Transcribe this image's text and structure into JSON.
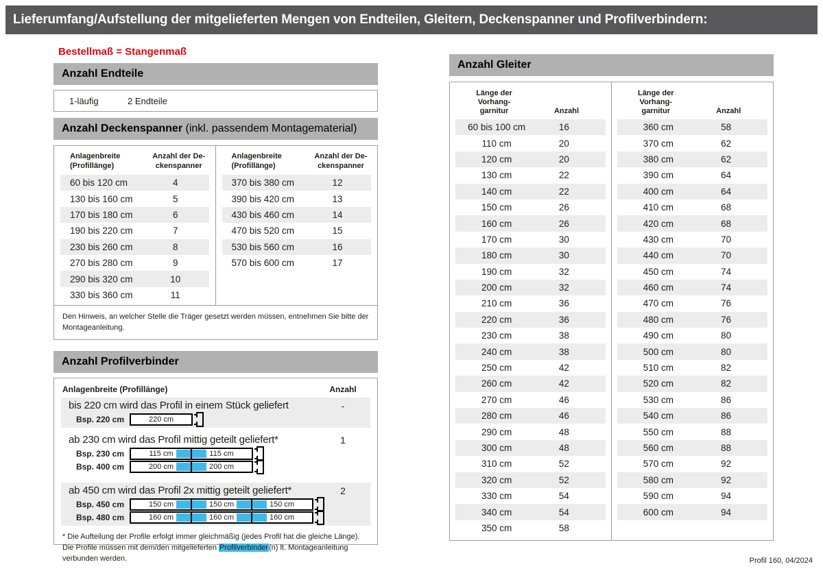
{
  "header": {
    "title": "Lieferumfang/Aufstellung der mitgelieferten Mengen von Endteilen, Gleitern, Deckenspanner und Profilverbindern:"
  },
  "subtitle": "Bestellmaß = Stangenmaß",
  "endteile": {
    "title": "Anzahl Endteile",
    "row": {
      "name": "1-läufig",
      "value": "2 Endteile"
    }
  },
  "deckenspanner": {
    "title_bold": "Anzahl Deckenspanner",
    "title_note": " (inkl. passendem Montagematerial)",
    "header": {
      "col1_lines": [
        "Anlagenbreite",
        "(Profillänge)"
      ],
      "col2_lines": [
        "Anzahl der De-",
        "ckenspanner"
      ]
    },
    "left_rows": [
      [
        "60 bis 120 cm",
        4
      ],
      [
        "130 bis 160 cm",
        5
      ],
      [
        "170 bis 180 cm",
        6
      ],
      [
        "190 bis 220 cm",
        7
      ],
      [
        "230 bis 260 cm",
        8
      ],
      [
        "270 bis 280 cm",
        9
      ],
      [
        "290 bis 320 cm",
        10
      ],
      [
        "330 bis 360 cm",
        11
      ]
    ],
    "right_rows": [
      [
        "370 bis 380 cm",
        12
      ],
      [
        "390 bis 420 cm",
        13
      ],
      [
        "430 bis 460 cm",
        14
      ],
      [
        "470 bis 520 cm",
        15
      ],
      [
        "530 bis 560 cm",
        16
      ],
      [
        "570 bis 600 cm",
        17
      ]
    ],
    "note": "Den Hinweis, an welcher Stelle die Träger gesetzt werden müssen, entnehmen Sie bitte der Montageanleitung."
  },
  "profilverbinder": {
    "title": "Anzahl Profilverbinder",
    "header": {
      "col1": "Anlagenbreite (Profillänge)",
      "col2": "Anzahl"
    },
    "groups": [
      {
        "heading": "bis 220 cm wird das Profil in einem Stück geliefert",
        "anzahl": "-",
        "shaded": true,
        "examples": [
          {
            "label": "Bsp. 220 cm",
            "segments": [
              "220 cm"
            ]
          }
        ]
      },
      {
        "heading": "ab 230 cm wird das Profil mittig geteilt geliefert*",
        "anzahl": "1",
        "shaded": false,
        "examples": [
          {
            "label": "Bsp. 230 cm",
            "segments": [
              "115 cm",
              "115 cm"
            ]
          },
          {
            "label": "Bsp. 400 cm",
            "segments": [
              "200 cm",
              "200 cm"
            ]
          }
        ]
      },
      {
        "heading": "ab 450 cm wird das Profil 2x mittig geteilt geliefert*",
        "anzahl": "2",
        "shaded": true,
        "examples": [
          {
            "label": "Bsp. 450 cm",
            "segments": [
              "150 cm",
              "150 cm",
              "150 cm"
            ]
          },
          {
            "label": "Bsp. 480 cm",
            "segments": [
              "160 cm",
              "160 cm",
              "160 cm"
            ]
          }
        ]
      }
    ],
    "footnote": {
      "before": "* Die Aufteilung der Profile erfolgt immer gleichmäßig (jedes Profil hat die gleiche Länge). Die Profile müssen mit dem/den mitgelieferten ",
      "highlight": "Profilverbinder",
      "after": "(n) lt. Montageanleitung verbunden werden."
    }
  },
  "gleiter": {
    "title": "Anzahl Gleiter",
    "header": {
      "col1_lines": [
        "Länge der",
        "Vorhang-",
        "garnitur"
      ],
      "col2": "Anzahl"
    },
    "left_rows": [
      [
        "60 bis 100 cm",
        16
      ],
      [
        "110 cm",
        20
      ],
      [
        "120 cm",
        20
      ],
      [
        "130 cm",
        22
      ],
      [
        "140 cm",
        22
      ],
      [
        "150 cm",
        26
      ],
      [
        "160 cm",
        26
      ],
      [
        "170 cm",
        30
      ],
      [
        "180 cm",
        30
      ],
      [
        "190 cm",
        32
      ],
      [
        "200 cm",
        32
      ],
      [
        "210 cm",
        36
      ],
      [
        "220 cm",
        36
      ],
      [
        "230 cm",
        38
      ],
      [
        "240 cm",
        38
      ],
      [
        "250 cm",
        42
      ],
      [
        "260 cm",
        42
      ],
      [
        "270 cm",
        46
      ],
      [
        "280 cm",
        46
      ],
      [
        "290 cm",
        48
      ],
      [
        "300 cm",
        48
      ],
      [
        "310 cm",
        52
      ],
      [
        "320 cm",
        52
      ],
      [
        "330 cm",
        54
      ],
      [
        "340 cm",
        54
      ],
      [
        "350 cm",
        58
      ]
    ],
    "right_rows": [
      [
        "360 cm",
        58
      ],
      [
        "370 cm",
        62
      ],
      [
        "380 cm",
        62
      ],
      [
        "390 cm",
        64
      ],
      [
        "400 cm",
        64
      ],
      [
        "410 cm",
        68
      ],
      [
        "420 cm",
        68
      ],
      [
        "430 cm",
        70
      ],
      [
        "440 cm",
        70
      ],
      [
        "450 cm",
        74
      ],
      [
        "460 cm",
        74
      ],
      [
        "470 cm",
        76
      ],
      [
        "480 cm",
        76
      ],
      [
        "490 cm",
        80
      ],
      [
        "500 cm",
        80
      ],
      [
        "510 cm",
        82
      ],
      [
        "520 cm",
        82
      ],
      [
        "530 cm",
        86
      ],
      [
        "540 cm",
        86
      ],
      [
        "550 cm",
        88
      ],
      [
        "560 cm",
        88
      ],
      [
        "570 cm",
        92
      ],
      [
        "580 cm",
        92
      ],
      [
        "590 cm",
        94
      ],
      [
        "600 cm",
        94
      ]
    ]
  },
  "footer": "Profil 160, 04/2024",
  "colors": {
    "top_bar": "#58585a",
    "section_bar": "#b1b1b1",
    "row_shade": "#ececec",
    "accent_red": "#e30613",
    "connector_cyan": "#41b9e8",
    "border_gray": "#9d9d9c"
  }
}
